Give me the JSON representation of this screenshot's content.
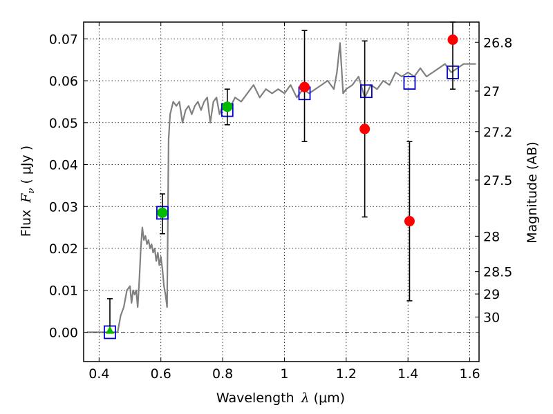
{
  "chart_data": {
    "type": "scatter",
    "xlabel": "Wavelength",
    "xlabel_symbol": "λ",
    "xlabel_unit": "(μm)",
    "ylabel": "Flux",
    "ylabel_symbol": "F",
    "ylabel_subscript": "ν",
    "ylabel_unit": "( μJy )",
    "ylabel_right": "Magnitude (AB)",
    "xlim": [
      0.35,
      1.63
    ],
    "ylim": [
      -0.007,
      0.074
    ],
    "x_ticks": [
      0.4,
      0.6,
      0.8,
      1.0,
      1.2,
      1.4,
      1.6
    ],
    "x_tick_labels": [
      "0.4",
      "0.6",
      "0.8",
      "1",
      "1.2",
      "1.4",
      "1.6"
    ],
    "y_ticks": [
      0.0,
      0.01,
      0.02,
      0.03,
      0.04,
      0.05,
      0.06,
      0.07
    ],
    "y_tick_labels": [
      "0.00",
      "0.01",
      "0.02",
      "0.03",
      "0.04",
      "0.05",
      "0.06",
      "0.07"
    ],
    "right_ticks": [
      {
        "label": "26.8",
        "mag": 26.8
      },
      {
        "label": "27",
        "mag": 27.0
      },
      {
        "label": "27.2",
        "mag": 27.2
      },
      {
        "label": "27.5",
        "mag": 27.5
      },
      {
        "label": "28",
        "mag": 28.0
      },
      {
        "label": "28.5",
        "mag": 28.5
      },
      {
        "label": "29",
        "mag": 29.0
      },
      {
        "label": "30",
        "mag": 30.0
      }
    ],
    "grid": true,
    "series": [
      {
        "kind": "line",
        "color": "#808080",
        "x": [
          0.36,
          0.44,
          0.45,
          0.46,
          0.47,
          0.48,
          0.49,
          0.5,
          0.505,
          0.51,
          0.515,
          0.52,
          0.525,
          0.53,
          0.535,
          0.54,
          0.545,
          0.55,
          0.555,
          0.56,
          0.565,
          0.57,
          0.575,
          0.58,
          0.585,
          0.59,
          0.595,
          0.6,
          0.605,
          0.61,
          0.615,
          0.62,
          0.625,
          0.63,
          0.64,
          0.65,
          0.66,
          0.67,
          0.68,
          0.69,
          0.7,
          0.71,
          0.72,
          0.73,
          0.74,
          0.75,
          0.76,
          0.77,
          0.78,
          0.79,
          0.8,
          0.82,
          0.84,
          0.86,
          0.88,
          0.9,
          0.92,
          0.94,
          0.96,
          0.98,
          1.0,
          1.02,
          1.04,
          1.06,
          1.08,
          1.1,
          1.12,
          1.14,
          1.16,
          1.17,
          1.18,
          1.19,
          1.2,
          1.22,
          1.24,
          1.26,
          1.28,
          1.3,
          1.32,
          1.34,
          1.36,
          1.38,
          1.4,
          1.42,
          1.44,
          1.46,
          1.48,
          1.5,
          1.52,
          1.54,
          1.56,
          1.58,
          1.6,
          1.62
        ],
        "values": [
          0.0,
          0.0,
          0.0,
          0.0,
          0.004,
          0.006,
          0.01,
          0.011,
          0.007,
          0.01,
          0.009,
          0.01,
          0.006,
          0.012,
          0.02,
          0.025,
          0.022,
          0.023,
          0.021,
          0.022,
          0.02,
          0.021,
          0.019,
          0.02,
          0.017,
          0.019,
          0.016,
          0.018,
          0.015,
          0.011,
          0.009,
          0.006,
          0.046,
          0.052,
          0.055,
          0.054,
          0.055,
          0.05,
          0.053,
          0.054,
          0.052,
          0.054,
          0.055,
          0.053,
          0.055,
          0.056,
          0.05,
          0.055,
          0.056,
          0.052,
          0.054,
          0.053,
          0.056,
          0.055,
          0.057,
          0.059,
          0.056,
          0.058,
          0.057,
          0.058,
          0.057,
          0.059,
          0.056,
          0.058,
          0.057,
          0.058,
          0.059,
          0.06,
          0.058,
          0.062,
          0.069,
          0.057,
          0.058,
          0.059,
          0.061,
          0.056,
          0.059,
          0.058,
          0.06,
          0.059,
          0.062,
          0.061,
          0.062,
          0.061,
          0.063,
          0.061,
          0.062,
          0.063,
          0.064,
          0.062,
          0.063,
          0.064,
          0.064,
          0.064
        ]
      },
      {
        "kind": "open-square",
        "color": "#0000cc",
        "x": [
          0.435,
          0.605,
          0.815,
          1.065,
          1.265,
          1.405,
          1.545
        ],
        "values": [
          0.0,
          0.0285,
          0.053,
          0.057,
          0.0575,
          0.0595,
          0.062
        ]
      },
      {
        "kind": "errorbar",
        "color": "#000000",
        "x": [
          0.435,
          0.605,
          0.815,
          1.065,
          1.26,
          1.405,
          1.545
        ],
        "lower": [
          0.0,
          0.0235,
          0.0495,
          0.0455,
          0.0275,
          0.0075,
          0.058
        ],
        "upper": [
          0.008,
          0.033,
          0.058,
          0.072,
          0.0695,
          0.0455,
          0.074
        ]
      },
      {
        "kind": "filled-circle",
        "color": "#00bb00",
        "x": [
          0.605,
          0.815
        ],
        "values": [
          0.0285,
          0.0538
        ]
      },
      {
        "kind": "filled-triangle",
        "color": "#00bb00",
        "x": [
          0.435
        ],
        "values": [
          0.0003
        ]
      },
      {
        "kind": "filled-circle",
        "color": "#ff0000",
        "x": [
          1.065,
          1.26,
          1.405,
          1.545
        ],
        "values": [
          0.0585,
          0.0485,
          0.0265,
          0.0698
        ]
      }
    ],
    "zero_line": {
      "value": 0.0,
      "color": "#444444"
    }
  }
}
